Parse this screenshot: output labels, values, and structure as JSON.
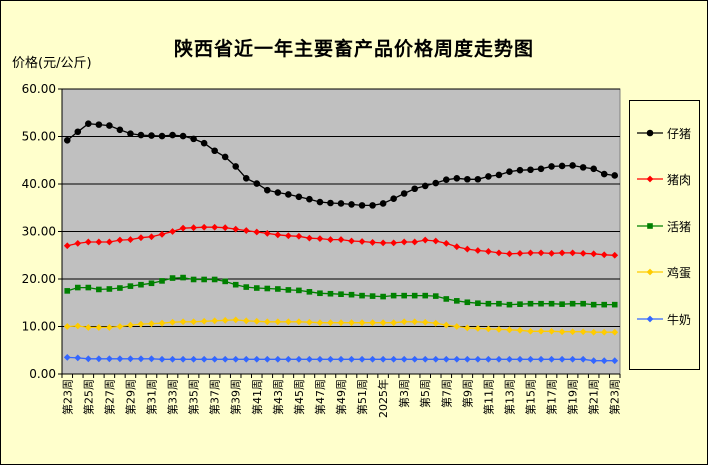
{
  "chart_data": {
    "type": "line",
    "title": "陕西省近一年主要畜产品价格周度走势图",
    "ylabel": "价格(元/公斤)",
    "ylim": [
      0,
      60
    ],
    "yticks": [
      "0.00",
      "10.00",
      "20.00",
      "30.00",
      "40.00",
      "50.00",
      "60.00"
    ],
    "grid": true,
    "legend_position": "right",
    "plot_background": "#c0c0c0",
    "page_background": "#ffffcc",
    "categories": [
      "第23周",
      "第24周",
      "第25周",
      "第26周",
      "第27周",
      "第28周",
      "第29周",
      "第30周",
      "第31周",
      "第32周",
      "第33周",
      "第34周",
      "第35周",
      "第36周",
      "第37周",
      "第38周",
      "第39周",
      "第40周",
      "第41周",
      "第42周",
      "第43周",
      "第44周",
      "第45周",
      "第46周",
      "第47周",
      "第48周",
      "第49周",
      "第50周",
      "第51周",
      "第52周",
      "2025年",
      "第2周",
      "第3周",
      "第4周",
      "第5周",
      "第6周",
      "第7周",
      "第8周",
      "第9周",
      "第10周",
      "第11周",
      "第12周",
      "第13周",
      "第14周",
      "第15周",
      "第16周",
      "第17周",
      "第18周",
      "第19周",
      "第20周",
      "第21周",
      "第22周",
      "第23周"
    ],
    "series": [
      {
        "name": "仔猪",
        "color": "#000000",
        "marker": "circle",
        "values": [
          49.2,
          51.0,
          52.7,
          52.5,
          52.3,
          51.4,
          50.6,
          50.3,
          50.2,
          50.1,
          50.3,
          50.1,
          49.5,
          48.6,
          47.0,
          45.7,
          43.7,
          41.2,
          40.1,
          38.7,
          38.2,
          37.8,
          37.3,
          36.8,
          36.2,
          36.0,
          35.9,
          35.7,
          35.5,
          35.5,
          35.9,
          36.9,
          38.0,
          39.0,
          39.6,
          40.2,
          40.9,
          41.2,
          41.0,
          41.0,
          41.6,
          41.9,
          42.6,
          42.9,
          43.0,
          43.2,
          43.7,
          43.8,
          43.9,
          43.5,
          43.2,
          42.1,
          41.8
        ]
      },
      {
        "name": "猪肉",
        "color": "#ff0000",
        "marker": "diamond",
        "values": [
          27.0,
          27.5,
          27.8,
          27.8,
          27.8,
          28.2,
          28.3,
          28.7,
          28.9,
          29.4,
          30.0,
          30.7,
          30.8,
          30.9,
          30.9,
          30.8,
          30.5,
          30.2,
          29.9,
          29.6,
          29.3,
          29.1,
          29.0,
          28.6,
          28.5,
          28.3,
          28.3,
          28.0,
          27.9,
          27.7,
          27.6,
          27.6,
          27.8,
          27.8,
          28.2,
          28.0,
          27.5,
          26.8,
          26.3,
          26.0,
          25.8,
          25.5,
          25.3,
          25.4,
          25.5,
          25.5,
          25.4,
          25.5,
          25.5,
          25.4,
          25.3,
          25.1,
          25.0
        ]
      },
      {
        "name": "活猪",
        "color": "#008000",
        "marker": "square",
        "values": [
          17.5,
          18.2,
          18.2,
          17.8,
          17.9,
          18.1,
          18.5,
          18.8,
          19.1,
          19.6,
          20.2,
          20.3,
          19.9,
          19.9,
          19.9,
          19.5,
          18.8,
          18.3,
          18.1,
          18.0,
          17.9,
          17.7,
          17.6,
          17.3,
          17.0,
          16.9,
          16.8,
          16.7,
          16.5,
          16.4,
          16.3,
          16.5,
          16.5,
          16.5,
          16.5,
          16.4,
          15.8,
          15.4,
          15.1,
          14.9,
          14.8,
          14.8,
          14.6,
          14.7,
          14.8,
          14.8,
          14.8,
          14.7,
          14.8,
          14.8,
          14.6,
          14.6,
          14.6
        ]
      },
      {
        "name": "鸡蛋",
        "color": "#ffcc00",
        "marker": "diamond",
        "values": [
          10.0,
          10.1,
          9.8,
          9.8,
          9.8,
          10.0,
          10.3,
          10.5,
          10.6,
          10.7,
          10.9,
          11.0,
          11.0,
          11.1,
          11.2,
          11.3,
          11.4,
          11.2,
          11.1,
          11.0,
          11.0,
          11.0,
          11.0,
          10.9,
          10.8,
          10.8,
          10.8,
          10.8,
          10.8,
          10.8,
          10.8,
          10.8,
          11.0,
          11.0,
          10.9,
          10.7,
          10.3,
          10.0,
          9.7,
          9.6,
          9.5,
          9.4,
          9.3,
          9.2,
          9.0,
          9.0,
          9.0,
          8.9,
          8.9,
          8.9,
          8.8,
          8.8,
          8.8
        ]
      },
      {
        "name": "牛奶",
        "color": "#3366ff",
        "marker": "diamond",
        "values": [
          3.5,
          3.4,
          3.2,
          3.2,
          3.2,
          3.2,
          3.2,
          3.2,
          3.2,
          3.1,
          3.1,
          3.1,
          3.1,
          3.1,
          3.1,
          3.1,
          3.1,
          3.1,
          3.1,
          3.1,
          3.1,
          3.1,
          3.1,
          3.1,
          3.1,
          3.1,
          3.1,
          3.1,
          3.1,
          3.1,
          3.1,
          3.1,
          3.1,
          3.1,
          3.1,
          3.1,
          3.1,
          3.1,
          3.1,
          3.1,
          3.1,
          3.1,
          3.1,
          3.1,
          3.1,
          3.1,
          3.1,
          3.1,
          3.1,
          3.1,
          2.8,
          2.8,
          2.8
        ]
      }
    ]
  }
}
